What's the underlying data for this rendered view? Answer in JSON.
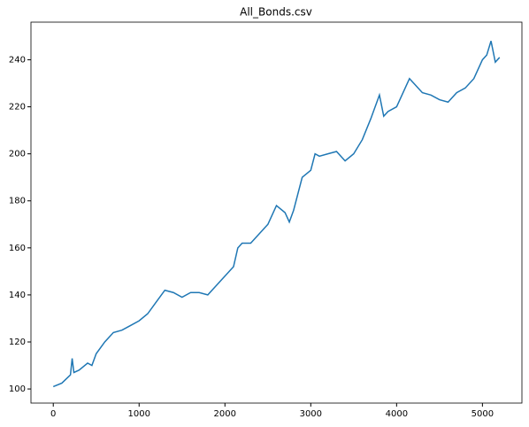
{
  "chart_data": {
    "type": "line",
    "title": "All_Bonds.csv",
    "x": [
      0,
      100,
      200,
      220,
      240,
      300,
      400,
      450,
      500,
      600,
      700,
      800,
      900,
      1000,
      1100,
      1200,
      1300,
      1400,
      1500,
      1600,
      1700,
      1800,
      1900,
      2000,
      2100,
      2150,
      2200,
      2300,
      2400,
      2500,
      2600,
      2700,
      2750,
      2800,
      2900,
      3000,
      3050,
      3100,
      3200,
      3300,
      3400,
      3500,
      3600,
      3700,
      3800,
      3850,
      3900,
      4000,
      4100,
      4150,
      4200,
      4300,
      4400,
      4500,
      4600,
      4700,
      4800,
      4900,
      5000,
      5050,
      5100,
      5150,
      5200
    ],
    "series": [
      {
        "name": "All_Bonds",
        "color": "#1f77b4",
        "values": [
          101,
          102.5,
          106,
          113,
          107,
          108,
          111,
          110,
          115,
          120,
          124,
          125,
          127,
          129,
          132,
          137,
          142,
          141,
          139,
          141,
          141,
          140,
          144,
          148,
          152,
          160,
          162,
          162,
          166,
          170,
          178,
          175,
          171,
          176,
          190,
          193,
          200,
          199,
          200,
          201,
          197,
          200,
          206,
          215,
          225,
          216,
          218,
          220,
          228,
          232,
          230,
          226,
          225,
          223,
          222,
          226,
          228,
          232,
          240,
          242,
          248,
          239,
          241
        ]
      }
    ],
    "xlim": [
      -260,
      5460
    ],
    "ylim": [
      94,
      256
    ],
    "xticks": [
      0,
      1000,
      2000,
      3000,
      4000,
      5000
    ],
    "yticks": [
      100,
      120,
      140,
      160,
      180,
      200,
      220,
      240
    ]
  }
}
